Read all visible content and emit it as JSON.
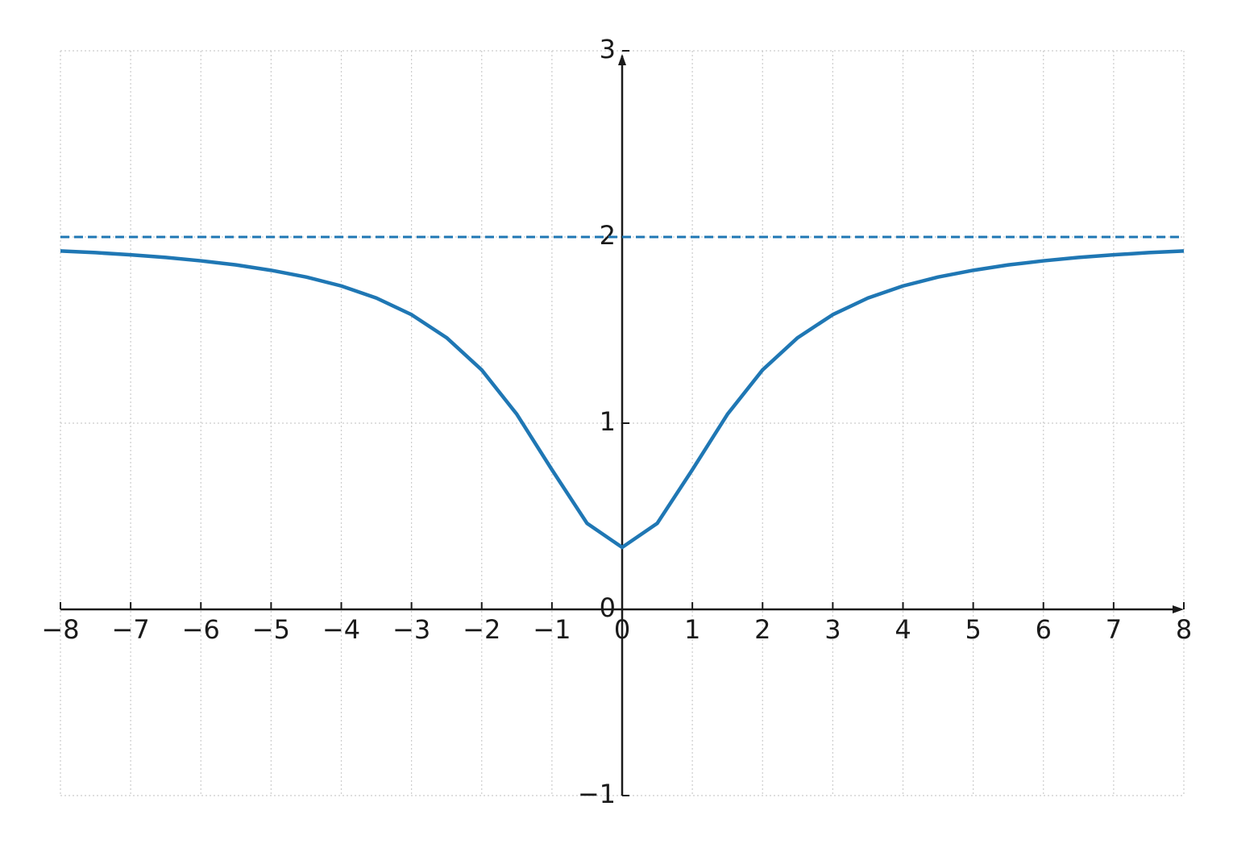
{
  "chart_data": {
    "type": "line",
    "x": [
      -8,
      -7.5,
      -7,
      -6.5,
      -6,
      -5.5,
      -5,
      -4.5,
      -4,
      -3.5,
      -3,
      -2.5,
      -2,
      -1.5,
      -1,
      -0.5,
      0,
      0.5,
      1,
      1.5,
      2,
      2.5,
      3,
      3.5,
      4,
      4.5,
      5,
      5.5,
      6,
      6.5,
      7,
      7.5,
      8
    ],
    "series": [
      {
        "color": "#1f77b4",
        "style": "solid",
        "values": [
          1.925,
          1.916,
          1.904,
          1.89,
          1.872,
          1.85,
          1.821,
          1.785,
          1.737,
          1.672,
          1.583,
          1.459,
          1.286,
          1.048,
          0.75,
          0.462,
          0.333,
          0.462,
          0.75,
          1.048,
          1.286,
          1.459,
          1.583,
          1.672,
          1.737,
          1.785,
          1.821,
          1.85,
          1.872,
          1.89,
          1.904,
          1.916,
          1.925
        ]
      },
      {
        "color": "#1f77b4",
        "style": "dashed",
        "values": [
          2,
          2,
          2,
          2,
          2,
          2,
          2,
          2,
          2,
          2,
          2,
          2,
          2,
          2,
          2,
          2,
          2,
          2,
          2,
          2,
          2,
          2,
          2,
          2,
          2,
          2,
          2,
          2,
          2,
          2,
          2,
          2,
          2
        ]
      }
    ],
    "xlim": [
      -8,
      8
    ],
    "ylim": [
      -1,
      3
    ],
    "xticks": [
      {
        "value": -8,
        "label": "−8"
      },
      {
        "value": -7,
        "label": "−7"
      },
      {
        "value": -6,
        "label": "−6"
      },
      {
        "value": -5,
        "label": "−5"
      },
      {
        "value": -4,
        "label": "−4"
      },
      {
        "value": -3,
        "label": "−3"
      },
      {
        "value": -2,
        "label": "−2"
      },
      {
        "value": -1,
        "label": "−1"
      },
      0,
      1,
      2,
      3,
      4,
      5,
      6,
      7,
      8
    ],
    "yticks": [
      {
        "value": -1,
        "label": "−1"
      },
      0,
      1,
      2,
      3
    ],
    "grid": true
  }
}
